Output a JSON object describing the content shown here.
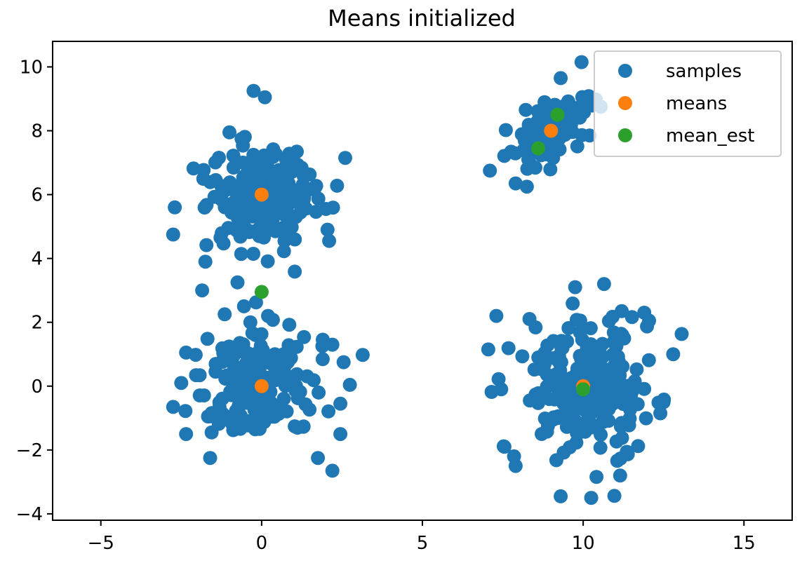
{
  "chart_data": {
    "type": "scatter",
    "title": "Means initialized",
    "xlabel": "",
    "ylabel": "",
    "xlim": [
      -6.5,
      16.5
    ],
    "ylim": [
      -4.2,
      10.8
    ],
    "x_ticks": [
      -5,
      0,
      5,
      10,
      15
    ],
    "x_tick_labels": [
      "−5",
      "0",
      "5",
      "10",
      "15"
    ],
    "y_ticks": [
      -4,
      -2,
      0,
      2,
      4,
      6,
      8,
      10
    ],
    "y_tick_labels": [
      "−4",
      "−2",
      "0",
      "2",
      "4",
      "6",
      "8",
      "10"
    ],
    "grid": false,
    "legend": {
      "position": "top-right"
    },
    "clusters": [
      {
        "center": [
          0,
          6
        ],
        "spread": 0.9,
        "count": 190
      },
      {
        "center": [
          0,
          0
        ],
        "spread": 0.9,
        "count": 190
      },
      {
        "center": [
          9,
          8
        ],
        "spread": 0.6,
        "count": 130
      },
      {
        "center": [
          10,
          0
        ],
        "spread": 1.05,
        "count": 200
      }
    ],
    "series": [
      {
        "name": "samples",
        "color": "#1f77b4",
        "extra_points": [
          [
            -0.25,
            9.25
          ],
          [
            0.1,
            9.05
          ],
          [
            -2.7,
            5.6
          ],
          [
            -2.75,
            4.75
          ],
          [
            -1.75,
            3.9
          ],
          [
            -1.85,
            3.0
          ],
          [
            -0.75,
            3.25
          ],
          [
            -0.55,
            2.5
          ],
          [
            -1.15,
            2.25
          ],
          [
            -0.35,
            2.0
          ],
          [
            0.2,
            2.2
          ],
          [
            2.6,
            7.15
          ],
          [
            2.1,
            4.55
          ],
          [
            2.05,
            4.9
          ],
          [
            -1.0,
            7.95
          ],
          [
            -2.35,
            1.05
          ],
          [
            -2.5,
            0.1
          ],
          [
            -2.75,
            -0.65
          ],
          [
            -2.35,
            -1.5
          ],
          [
            -1.6,
            -2.25
          ],
          [
            2.2,
            -2.65
          ],
          [
            2.45,
            -1.5
          ],
          [
            2.45,
            -0.55
          ],
          [
            2.55,
            0.75
          ],
          [
            2.2,
            1.3
          ],
          [
            1.75,
            -2.25
          ],
          [
            9.3,
            9.65
          ],
          [
            9.95,
            10.15
          ],
          [
            10.55,
            8.75
          ],
          [
            10.2,
            7.85
          ],
          [
            7.1,
            6.75
          ],
          [
            8.25,
            6.25
          ],
          [
            7.9,
            6.35
          ],
          [
            10.65,
            3.2
          ],
          [
            9.75,
            3.1
          ],
          [
            7.3,
            2.2
          ],
          [
            7.05,
            1.15
          ],
          [
            7.45,
            -0.1
          ],
          [
            12.8,
            1.0
          ],
          [
            12.5,
            -0.5
          ],
          [
            12.4,
            -0.85
          ],
          [
            11.15,
            -2.8
          ],
          [
            9.3,
            -3.45
          ],
          [
            10.25,
            -3.5
          ],
          [
            7.9,
            -2.5
          ],
          [
            7.85,
            -2.2
          ],
          [
            7.55,
            -1.9
          ],
          [
            11.9,
            2.3
          ],
          [
            12.05,
            2.05
          ],
          [
            11.2,
            2.35
          ]
        ]
      },
      {
        "name": "means",
        "color": "#ff7f0e",
        "points": [
          [
            0,
            6
          ],
          [
            0,
            0
          ],
          [
            9,
            8
          ],
          [
            10,
            0
          ]
        ]
      },
      {
        "name": "mean_est",
        "color": "#2ca02c",
        "points": [
          [
            9.2,
            8.5
          ],
          [
            8.6,
            7.45
          ],
          [
            0,
            2.95
          ],
          [
            10,
            -0.1
          ]
        ]
      }
    ]
  }
}
